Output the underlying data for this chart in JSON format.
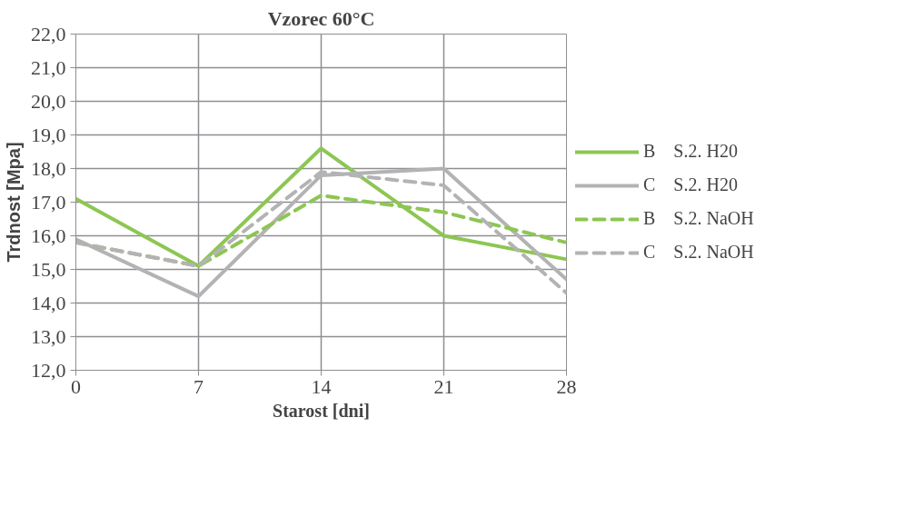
{
  "chart_data": {
    "type": "line",
    "title": "Vzorec 60°C",
    "xlabel": "Starost [dni]",
    "ylabel": "Trdnost [Mpa]",
    "x": [
      0,
      7,
      14,
      21,
      28
    ],
    "xlim": [
      0,
      28
    ],
    "xticks": [
      0,
      7,
      14,
      21,
      28
    ],
    "ylim": [
      12,
      22
    ],
    "yticks": [
      {
        "value": 12,
        "label": "12,0"
      },
      {
        "value": 13,
        "label": "13,0"
      },
      {
        "value": 14,
        "label": "14,0"
      },
      {
        "value": 15,
        "label": "15,0"
      },
      {
        "value": 16,
        "label": "16,0"
      },
      {
        "value": 17,
        "label": "17,0"
      },
      {
        "value": 18,
        "label": "18,0"
      },
      {
        "value": 19,
        "label": "19,0"
      },
      {
        "value": 20,
        "label": "20,0"
      },
      {
        "value": 21,
        "label": "21,0"
      },
      {
        "value": 22,
        "label": "22,0"
      }
    ],
    "grid": true,
    "legend": "right",
    "marker": "none",
    "series": [
      {
        "name": "B    S.2. H20",
        "color": "#8dc653",
        "line_style": "solid",
        "values": [
          17.1,
          15.1,
          18.6,
          16.0,
          15.3
        ]
      },
      {
        "name": "C    S.2. H20",
        "color": "#b3b3b5",
        "line_style": "solid",
        "values": [
          15.9,
          14.2,
          17.8,
          18.0,
          14.7
        ]
      },
      {
        "name": "B    S.2. NaOH",
        "color": "#8dc653",
        "line_style": "dashed",
        "values": [
          15.8,
          15.1,
          17.2,
          16.7,
          15.8
        ]
      },
      {
        "name": "C    S.2. NaOH",
        "color": "#b3b3b5",
        "line_style": "dashed",
        "values": [
          15.8,
          15.1,
          17.9,
          17.5,
          14.3
        ]
      }
    ]
  }
}
